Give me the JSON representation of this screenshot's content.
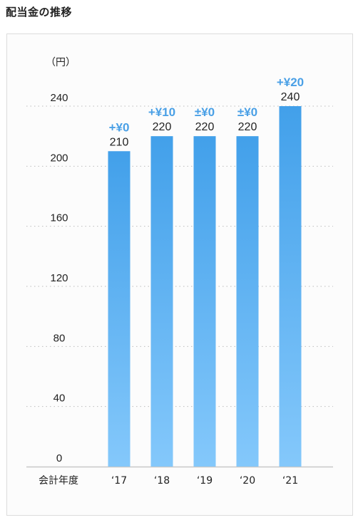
{
  "page": {
    "title": "配当金の推移"
  },
  "colors": {
    "bar_top": "#42a0ea",
    "bar_bottom": "#84c8fb",
    "change_text": "#4aa0e6",
    "grid": "#bdbdbd",
    "axis": "#c8c8c8"
  },
  "chart_data": {
    "type": "bar",
    "title": "配当金の推移",
    "unit_label": "（円）",
    "x_axis_label": "会計年度",
    "categories": [
      "‘17",
      "‘18",
      "‘19",
      "‘20",
      "‘21"
    ],
    "values": [
      210,
      220,
      220,
      220,
      240
    ],
    "value_labels": [
      "210",
      "220",
      "220",
      "220",
      "240"
    ],
    "change_labels": [
      "+¥0",
      "+¥10",
      "±¥0",
      "±¥0",
      "+¥20"
    ],
    "ylim": [
      0,
      240
    ],
    "y_ticks": [
      0,
      40,
      80,
      120,
      160,
      200,
      240
    ],
    "y_tick_labels": [
      "0",
      "40",
      "80",
      "120",
      "160",
      "200",
      "240"
    ],
    "grid": "dotted horizontal",
    "legend": "none"
  }
}
